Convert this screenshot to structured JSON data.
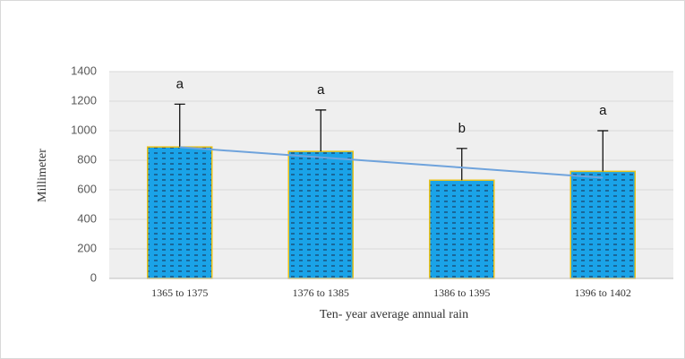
{
  "chart_data": {
    "type": "bar",
    "x_label": "Ten- year average annual rain",
    "y_label": "Millimeter",
    "categories": [
      "1365 to 1375",
      "1376 to 1385",
      "1386 to 1395",
      "1396 to 1402"
    ],
    "values": [
      890,
      860,
      665,
      725
    ],
    "errors": [
      290,
      280,
      215,
      275
    ],
    "annotations": [
      "a",
      "a",
      "b",
      "a"
    ],
    "color": "#1aa3e8",
    "edge_color": "#e8c21a",
    "trendline": "linear",
    "trendline_color": "#6fa3dc",
    "ylim": [
      0,
      1400
    ],
    "yticks": [
      0,
      200,
      400,
      600,
      800,
      1000,
      1200,
      1400
    ],
    "grid": true
  }
}
